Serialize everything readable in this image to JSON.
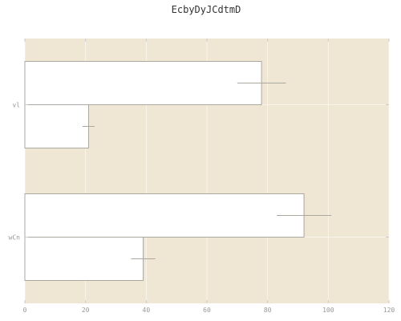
{
  "chart_data": {
    "type": "bar",
    "orientation": "horizontal",
    "title": "EcbyDyJCdtmD",
    "xlabel": "",
    "ylabel": "",
    "xlim": [
      0,
      120
    ],
    "x_ticks": [
      0,
      20,
      40,
      60,
      80,
      100,
      120
    ],
    "categories": [
      "wCn",
      "vl"
    ],
    "series": [
      {
        "values": [
          39,
          21
        ],
        "errors": [
          4,
          2
        ]
      },
      {
        "values": [
          92,
          78
        ],
        "errors": [
          9,
          8
        ]
      }
    ],
    "grid": true,
    "background_color": "#efe6d4",
    "bar_fill": "#ffffff",
    "bar_edge": "#aaa8a0"
  }
}
